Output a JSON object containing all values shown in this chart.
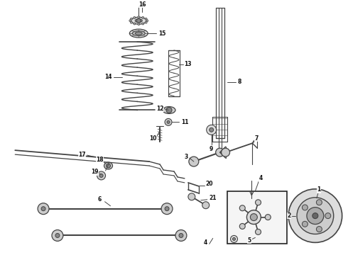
{
  "bg_color": "#ffffff",
  "fig_width": 4.9,
  "fig_height": 3.6,
  "dpi": 100,
  "line_color": "#444444",
  "font_size": 5.5
}
